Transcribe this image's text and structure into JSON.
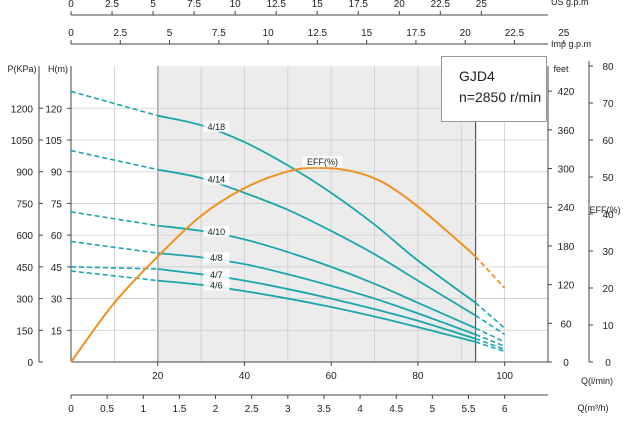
{
  "title": {
    "model": "GJD4",
    "speed": "n=2850 r/min"
  },
  "colors": {
    "pump_curve": "#1aa6ad",
    "efficiency_curve": "#f0901e",
    "shaded_region": "#ececec",
    "grid": "#cccccc",
    "axis": "#444444"
  },
  "chart_data": {
    "type": "line",
    "x_primary": {
      "label": "Q(l/min)",
      "range": [
        0,
        110
      ],
      "ticks": [
        20,
        40,
        60,
        80,
        100
      ]
    },
    "shaded_range_lpm": [
      20,
      93.3
    ],
    "top_axes": [
      {
        "label": "US  g.p.m",
        "range": [
          0,
          29.06
        ],
        "ticks": [
          "0",
          "2.5",
          "5",
          "7.5",
          "10",
          "12.5",
          "15",
          "17.5",
          "20",
          "22.5",
          "25"
        ]
      },
      {
        "label": "Imp  g.p.m",
        "range": [
          0,
          24.2
        ],
        "ticks": [
          "0",
          "2.5",
          "5",
          "7.5",
          "10",
          "12.5",
          "15",
          "17.5",
          "20",
          "22.5",
          "25"
        ]
      }
    ],
    "bottom_axis": {
      "label": "Q(m³/h)",
      "range": [
        0,
        6.6
      ],
      "ticks": [
        "0",
        "0.5",
        "1",
        "1.5",
        "2",
        "2.5",
        "3",
        "3.5",
        "4",
        "4.5",
        "5",
        "5.5",
        "6"
      ]
    },
    "y_axes": {
      "head_m": {
        "label": "H(m)",
        "range": [
          0,
          140
        ],
        "ticks": [
          15,
          30,
          45,
          60,
          75,
          90,
          105,
          120
        ]
      },
      "pressure_kpa": {
        "label": "P(KPa)",
        "range": [
          0,
          1400
        ],
        "ticks": [
          0,
          150,
          300,
          450,
          600,
          750,
          900,
          1050,
          1200
        ]
      },
      "head_feet": {
        "label": "feet",
        "range": [
          0,
          459
        ],
        "ticks": [
          0,
          60,
          120,
          180,
          240,
          300,
          360,
          420
        ]
      },
      "efficiency": {
        "label": "EFF(%)",
        "range": [
          0,
          80
        ],
        "ticks": [
          0,
          10,
          20,
          30,
          40,
          50,
          60,
          70,
          80
        ]
      }
    },
    "series": [
      {
        "name": "4/18",
        "axis": "head_m",
        "dashed_before": [
          [
            0,
            128
          ],
          [
            20,
            116.5
          ]
        ],
        "points": [
          [
            20,
            116.5
          ],
          [
            30,
            112
          ],
          [
            40,
            104
          ],
          [
            50,
            93
          ],
          [
            60,
            80
          ],
          [
            70,
            65
          ],
          [
            80,
            48
          ],
          [
            93.3,
            28
          ]
        ],
        "dashed_after": [
          [
            93.3,
            28
          ],
          [
            100,
            16
          ]
        ],
        "label_at": 31
      },
      {
        "name": "4/14",
        "axis": "head_m",
        "dashed_before": [
          [
            0,
            100
          ],
          [
            20,
            91
          ]
        ],
        "points": [
          [
            20,
            91
          ],
          [
            30,
            87
          ],
          [
            40,
            80
          ],
          [
            50,
            72
          ],
          [
            60,
            62
          ],
          [
            70,
            51
          ],
          [
            80,
            38.5
          ],
          [
            93.3,
            22
          ]
        ],
        "dashed_after": [
          [
            93.3,
            22
          ],
          [
            100,
            13
          ]
        ],
        "label_at": 31
      },
      {
        "name": "4/10",
        "axis": "head_m",
        "dashed_before": [
          [
            0,
            71
          ],
          [
            20,
            64.5
          ]
        ],
        "points": [
          [
            20,
            64.5
          ],
          [
            30,
            62
          ],
          [
            40,
            58
          ],
          [
            50,
            52
          ],
          [
            60,
            45
          ],
          [
            70,
            37
          ],
          [
            80,
            28
          ],
          [
            93.3,
            16
          ]
        ],
        "dashed_after": [
          [
            93.3,
            16
          ],
          [
            100,
            9.5
          ]
        ],
        "label_at": 31
      },
      {
        "name": "4/8",
        "axis": "head_m",
        "dashed_before": [
          [
            0,
            57
          ],
          [
            20,
            51.5
          ]
        ],
        "points": [
          [
            20,
            51.5
          ],
          [
            30,
            49.5
          ],
          [
            40,
            46.3
          ],
          [
            50,
            41.5
          ],
          [
            60,
            36
          ],
          [
            70,
            30
          ],
          [
            80,
            23
          ],
          [
            93.3,
            13
          ]
        ],
        "dashed_after": [
          [
            93.3,
            13
          ],
          [
            100,
            7.5
          ]
        ],
        "label_at": 31
      },
      {
        "name": "4/7",
        "axis": "head_m",
        "dashed_before": [
          [
            0,
            45
          ],
          [
            20,
            44
          ]
        ],
        "points": [
          [
            20,
            44
          ],
          [
            30,
            41.5
          ],
          [
            40,
            38.5
          ],
          [
            50,
            34.5
          ],
          [
            60,
            30
          ],
          [
            70,
            25
          ],
          [
            80,
            19.5
          ],
          [
            93.3,
            11
          ]
        ],
        "dashed_after": [
          [
            93.3,
            11
          ],
          [
            100,
            6
          ]
        ],
        "label_at": 31
      },
      {
        "name": "4/6",
        "axis": "head_m",
        "dashed_before": [
          [
            0,
            43
          ],
          [
            20,
            38.5
          ]
        ],
        "points": [
          [
            20,
            38.5
          ],
          [
            30,
            36.5
          ],
          [
            40,
            33.5
          ],
          [
            50,
            30
          ],
          [
            60,
            26
          ],
          [
            70,
            21.5
          ],
          [
            80,
            16.5
          ],
          [
            93.3,
            9.5
          ]
        ],
        "dashed_after": [
          [
            93.3,
            9.5
          ],
          [
            100,
            5
          ]
        ],
        "label_at": 31
      }
    ],
    "efficiency_series": {
      "name": "EFF(%)",
      "axis": "efficiency",
      "points": [
        [
          0,
          0
        ],
        [
          10,
          16
        ],
        [
          20,
          28.5
        ],
        [
          30,
          39.5
        ],
        [
          40,
          47
        ],
        [
          50,
          51.5
        ],
        [
          57,
          52.5
        ],
        [
          65,
          51.5
        ],
        [
          72,
          48.5
        ],
        [
          80,
          42
        ],
        [
          90,
          32
        ],
        [
          93.3,
          28.5
        ]
      ],
      "dashed_after": [
        [
          93.3,
          28.5
        ],
        [
          100,
          20
        ]
      ],
      "label": "EFF(%)"
    }
  }
}
